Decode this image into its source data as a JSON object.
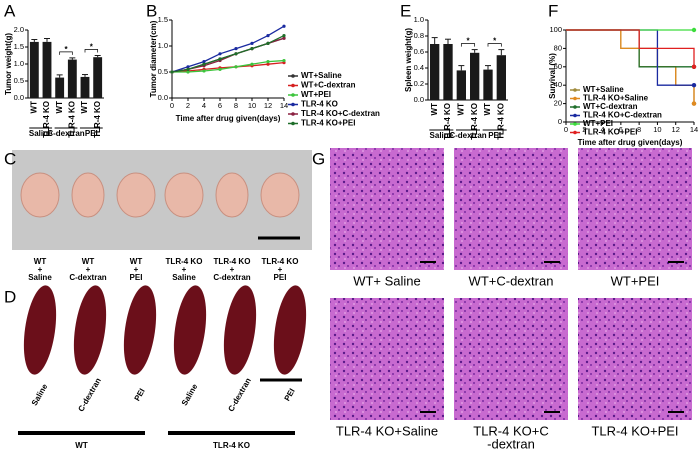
{
  "panel_labels": [
    "A",
    "B",
    "C",
    "D",
    "E",
    "F",
    "G"
  ],
  "chart_data": [
    {
      "type": "bar",
      "ylabel": "Tumor weight(g)",
      "color": "#1a1a1a",
      "categories": [
        "WT",
        "TLR-4 KO",
        "WT",
        "TLR-4 KO",
        "WT",
        "TLR-4 KO"
      ],
      "groups": [
        "Saline",
        "C-dextran",
        "PEI"
      ],
      "values": [
        1.65,
        1.65,
        0.6,
        1.13,
        0.62,
        1.2
      ],
      "errors": [
        0.07,
        0.1,
        0.08,
        0.05,
        0.07,
        0.05
      ],
      "significance": [
        "*",
        "*"
      ],
      "ylim": [
        0,
        2
      ],
      "yticks": [
        {
          "value": 0,
          "label": "0.0"
        },
        0.5,
        {
          "value": 1,
          "label": "1.0"
        },
        1.5,
        {
          "value": 2,
          "label": "2.0"
        }
      ]
    },
    {
      "type": "line",
      "ylabel": "Tumor diameter(cm)",
      "xlabel": "Time after drug given(days)",
      "x": [
        0,
        2,
        4,
        6,
        8,
        10,
        12,
        14
      ],
      "xlim": [
        0,
        14
      ],
      "xticks": [
        0,
        2,
        4,
        6,
        8,
        10,
        12,
        14
      ],
      "ylim": [
        0,
        1.5
      ],
      "yticks": [
        {
          "value": 0,
          "label": "0.0"
        },
        0.5,
        {
          "value": 1,
          "label": "1.0"
        },
        1.5
      ],
      "series": [
        {
          "name": "WT+Saline",
          "color": "#333333",
          "values": [
            0.5,
            0.55,
            0.65,
            0.75,
            0.85,
            0.95,
            1.05,
            1.15
          ]
        },
        {
          "name": "WT+C-dextran",
          "color": "#d62020",
          "values": [
            0.5,
            0.52,
            0.55,
            0.58,
            0.6,
            0.62,
            0.65,
            0.68
          ]
        },
        {
          "name": "WT+PEI",
          "color": "#3cc43c",
          "values": [
            0.5,
            0.5,
            0.52,
            0.55,
            0.6,
            0.65,
            0.7,
            0.72
          ]
        },
        {
          "name": "TLR-4 KO",
          "color": "#1a2aa0",
          "values": [
            0.5,
            0.6,
            0.7,
            0.85,
            0.95,
            1.05,
            1.2,
            1.38
          ]
        },
        {
          "name": "TLR-4 KO+C-dextran",
          "color": "#8a2040",
          "values": [
            0.5,
            0.55,
            0.62,
            0.72,
            0.85,
            0.95,
            1.05,
            1.15
          ]
        },
        {
          "name": "TLR-4 KO+PEI",
          "color": "#1f6e2a",
          "values": [
            0.5,
            0.55,
            0.65,
            0.75,
            0.85,
            0.95,
            1.05,
            1.2
          ]
        }
      ]
    },
    {
      "type": "bar",
      "ylabel": "Spleen weight(g)",
      "color": "#1a1a1a",
      "categories": [
        "WT",
        "TLR-4 KO",
        "WT",
        "TLR-4 KO",
        "WT",
        "TLR-4 KO"
      ],
      "groups": [
        "Saline",
        "C-dextran",
        "PEI"
      ],
      "values": [
        0.7,
        0.7,
        0.37,
        0.59,
        0.38,
        0.56
      ],
      "errors": [
        0.08,
        0.06,
        0.06,
        0.04,
        0.05,
        0.07
      ],
      "significance": [
        "*",
        "*"
      ],
      "ylim": [
        0,
        1
      ],
      "yticks": [
        {
          "value": 0,
          "label": "0.0"
        },
        0.2,
        0.4,
        0.6,
        0.8,
        {
          "value": 1,
          "label": "1.0"
        }
      ]
    },
    {
      "type": "step",
      "ylabel": "Survival (%)",
      "xlabel": "Time after drug given(days)",
      "xlim": [
        0,
        14
      ],
      "xticks": [
        0,
        2,
        4,
        6,
        8,
        10,
        12,
        14
      ],
      "ylim": [
        0,
        100
      ],
      "yticks": [
        0,
        20,
        40,
        60,
        80,
        100
      ],
      "series": [
        {
          "name": "WT+Saline",
          "color": "#a08a3c",
          "x": [
            0,
            6,
            10,
            12,
            14
          ],
          "values": [
            100,
            80,
            60,
            40,
            20
          ]
        },
        {
          "name": "TLR-4 KO+Saline",
          "color": "#e08a20",
          "x": [
            0,
            6,
            8,
            12,
            14
          ],
          "values": [
            100,
            80,
            60,
            40,
            20
          ]
        },
        {
          "name": "WT+C-dextran",
          "color": "#1f6e2a",
          "x": [
            0,
            8,
            14
          ],
          "values": [
            100,
            60,
            60
          ]
        },
        {
          "name": "TLR-4 KO+C-dextran",
          "color": "#1a2aa0",
          "x": [
            0,
            10,
            14
          ],
          "values": [
            100,
            40,
            40
          ]
        },
        {
          "name": "WT+PEI",
          "color": "#3cdc3c",
          "x": [
            0,
            14
          ],
          "values": [
            100,
            100
          ]
        },
        {
          "name": "TLR-4 KO+PEI",
          "color": "#e02020",
          "x": [
            0,
            8,
            14
          ],
          "values": [
            100,
            80,
            60
          ]
        }
      ]
    }
  ],
  "tumor_photos": {
    "captions": [
      [
        "WT",
        "+",
        "Saline"
      ],
      [
        "WT",
        "+",
        "C-dextran"
      ],
      [
        "WT",
        "+",
        "PEI"
      ],
      [
        "TLR-4 KO",
        "+",
        "Saline"
      ],
      [
        "TLR-4 KO",
        "+",
        "C-dextran"
      ],
      [
        "TLR-4 KO",
        "+",
        "PEI"
      ]
    ]
  },
  "spleen_photos": {
    "labels": [
      "Saline",
      "C-dextran",
      "PEI",
      "Saline",
      "C-dextran",
      "PEI"
    ],
    "groups": [
      "WT",
      "TLR-4 KO"
    ]
  },
  "histology": {
    "captions": [
      [
        "WT+ Saline"
      ],
      [
        "WT+C-dextran"
      ],
      [
        "WT+PEI"
      ],
      [
        "TLR-4 KO+Saline"
      ],
      [
        "TLR-4 KO+C",
        "-dextran"
      ],
      [
        "TLR-4 KO+PEI"
      ]
    ]
  }
}
